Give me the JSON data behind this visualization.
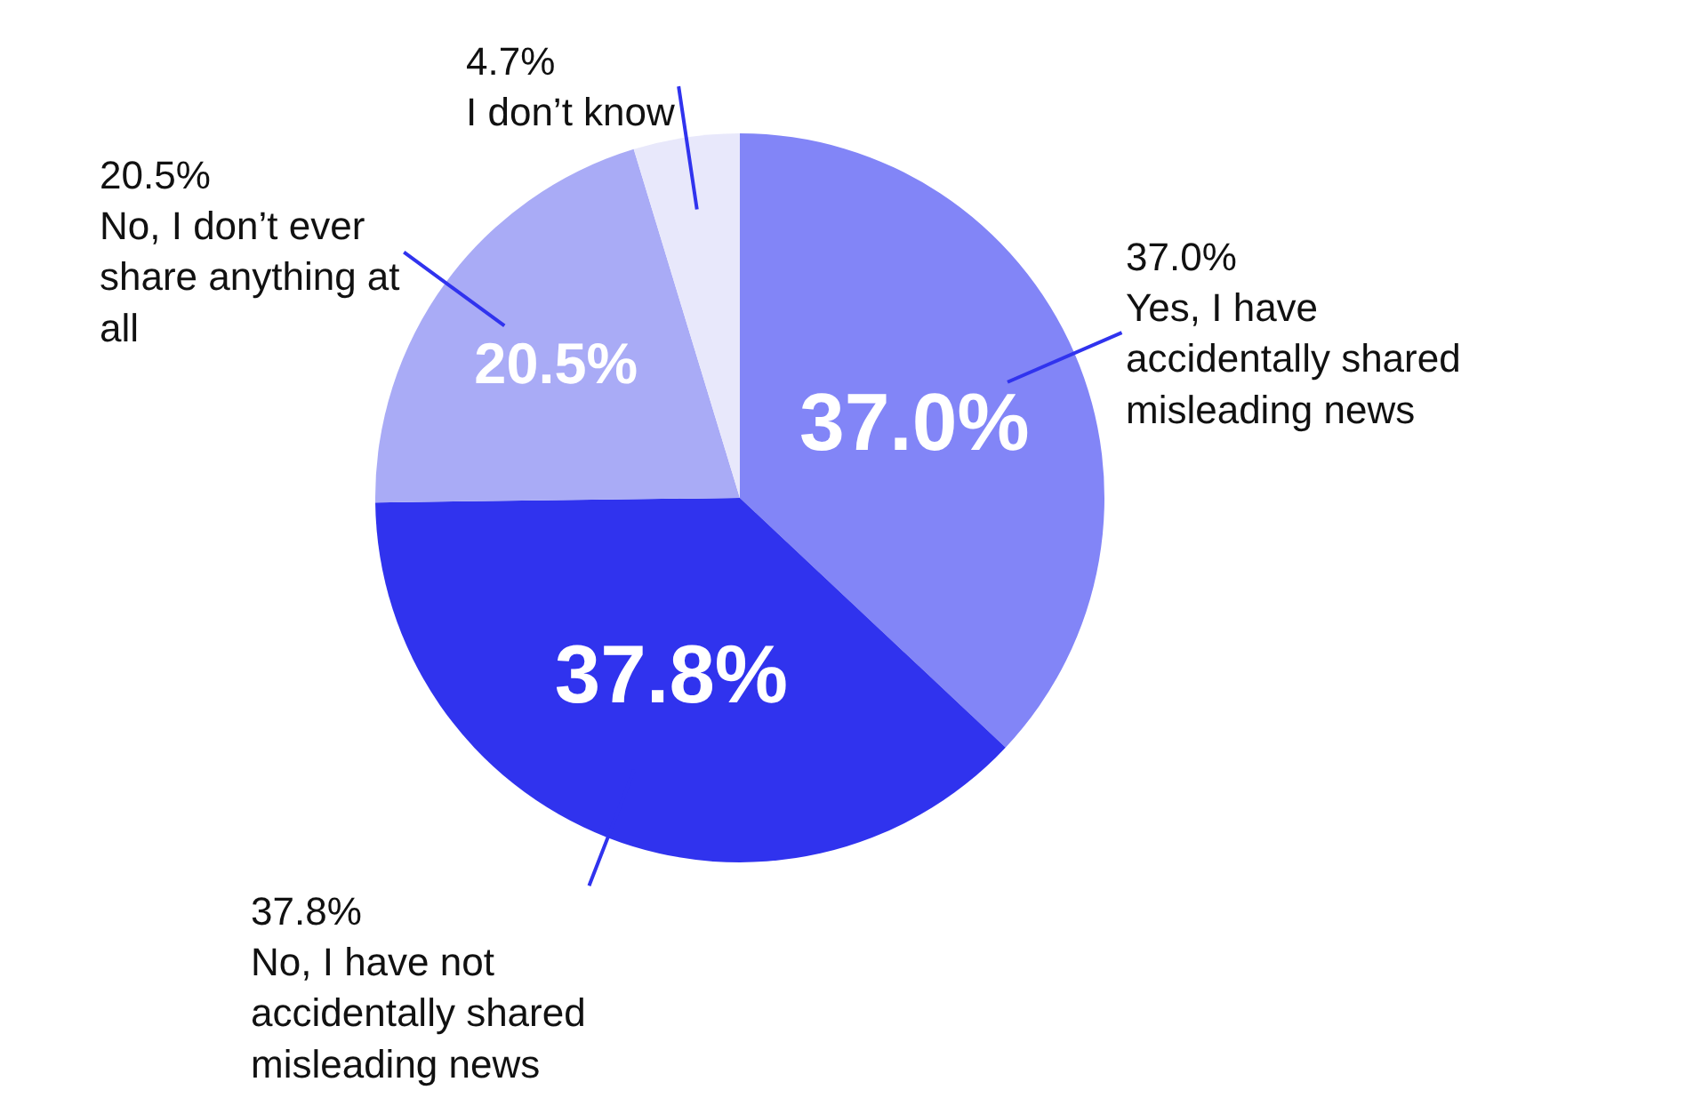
{
  "chart_data": {
    "type": "pie",
    "categories": [
      "Yes, I have accidentally shared misleading news",
      "No, I have not accidentally shared misleading news",
      "No, I don’t ever share anything at all",
      "I don’t know"
    ],
    "values": [
      37.0,
      37.8,
      20.5,
      4.7
    ],
    "colors": [
      "#8285f7",
      "#3033ee",
      "#a9abf6",
      "#e8e8fb"
    ],
    "value_labels": [
      "37.0%",
      "37.8%",
      "20.5%",
      null
    ],
    "annotations": [
      "37.0%",
      "37.8%",
      "20.5%",
      "4.7%"
    ],
    "legend": false
  }
}
